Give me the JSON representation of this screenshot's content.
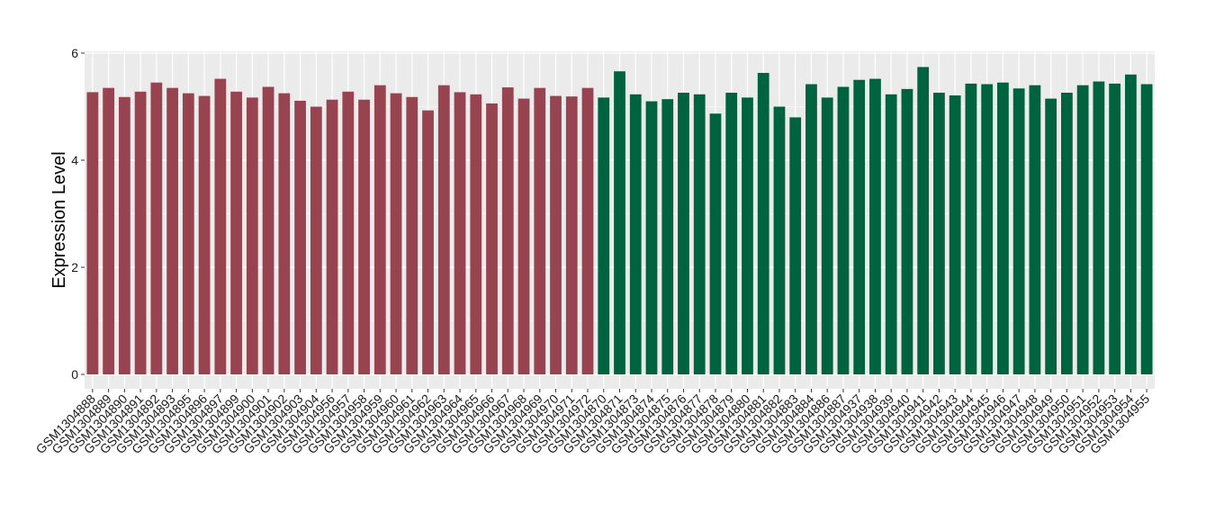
{
  "chart_data": {
    "type": "bar",
    "title": "",
    "xlabel": "",
    "ylabel": "Expression Level",
    "ylim": [
      0,
      6
    ],
    "yticks": [
      0,
      2,
      4,
      6
    ],
    "grid": true,
    "background": "#EBEBEB",
    "gridColor": "#FFFFFF",
    "categories": [
      "GSM1304888",
      "GSM1304889",
      "GSM1304890",
      "GSM1304891",
      "GSM1304892",
      "GSM1304893",
      "GSM1304895",
      "GSM1304896",
      "GSM1304897",
      "GSM1304899",
      "GSM1304900",
      "GSM1304901",
      "GSM1304902",
      "GSM1304903",
      "GSM1304904",
      "GSM1304956",
      "GSM1304957",
      "GSM1304958",
      "GSM1304959",
      "GSM1304960",
      "GSM1304961",
      "GSM1304962",
      "GSM1304963",
      "GSM1304964",
      "GSM1304965",
      "GSM1304966",
      "GSM1304967",
      "GSM1304968",
      "GSM1304969",
      "GSM1304970",
      "GSM1304971",
      "GSM1304972",
      "GSM1304870",
      "GSM1304871",
      "GSM1304873",
      "GSM1304874",
      "GSM1304875",
      "GSM1304876",
      "GSM1304877",
      "GSM1304878",
      "GSM1304879",
      "GSM1304880",
      "GSM1304881",
      "GSM1304882",
      "GSM1304883",
      "GSM1304884",
      "GSM1304886",
      "GSM1304887",
      "GSM1304937",
      "GSM1304938",
      "GSM1304939",
      "GSM1304940",
      "GSM1304941",
      "GSM1304942",
      "GSM1304943",
      "GSM1304944",
      "GSM1304945",
      "GSM1304946",
      "GSM1304947",
      "GSM1304948",
      "GSM1304949",
      "GSM1304950",
      "GSM1304951",
      "GSM1304952",
      "GSM1304953",
      "GSM1304954",
      "GSM1304955"
    ],
    "values": [
      5.27,
      5.35,
      5.18,
      5.28,
      5.45,
      5.35,
      5.25,
      5.2,
      5.52,
      5.28,
      5.17,
      5.37,
      5.25,
      5.11,
      5.0,
      5.13,
      5.28,
      5.13,
      5.4,
      5.25,
      5.18,
      4.93,
      5.4,
      5.27,
      5.23,
      5.06,
      5.36,
      5.15,
      5.35,
      5.2,
      5.19,
      5.35,
      5.17,
      5.66,
      5.23,
      5.1,
      5.14,
      5.26,
      5.23,
      4.87,
      5.26,
      5.17,
      5.63,
      5.0,
      4.8,
      5.42,
      5.17,
      5.37,
      5.5,
      5.52,
      5.23,
      5.33,
      5.74,
      5.26,
      5.21,
      5.43,
      5.42,
      5.45,
      5.34,
      5.4,
      5.15,
      5.26,
      5.4,
      5.47,
      5.43,
      5.6,
      5.42
    ],
    "colors": [
      "#984450",
      "#984450",
      "#984450",
      "#984450",
      "#984450",
      "#984450",
      "#984450",
      "#984450",
      "#984450",
      "#984450",
      "#984450",
      "#984450",
      "#984450",
      "#984450",
      "#984450",
      "#984450",
      "#984450",
      "#984450",
      "#984450",
      "#984450",
      "#984450",
      "#984450",
      "#984450",
      "#984450",
      "#984450",
      "#984450",
      "#984450",
      "#984450",
      "#984450",
      "#984450",
      "#984450",
      "#984450",
      "#006340",
      "#006340",
      "#006340",
      "#006340",
      "#006340",
      "#006340",
      "#006340",
      "#006340",
      "#006340",
      "#006340",
      "#006340",
      "#006340",
      "#006340",
      "#006340",
      "#006340",
      "#006340",
      "#006340",
      "#006340",
      "#006340",
      "#006340",
      "#006340",
      "#006340",
      "#006340",
      "#006340",
      "#006340",
      "#006340",
      "#006340",
      "#006340",
      "#006340",
      "#006340",
      "#006340",
      "#006340",
      "#006340",
      "#006340",
      "#006340"
    ]
  }
}
